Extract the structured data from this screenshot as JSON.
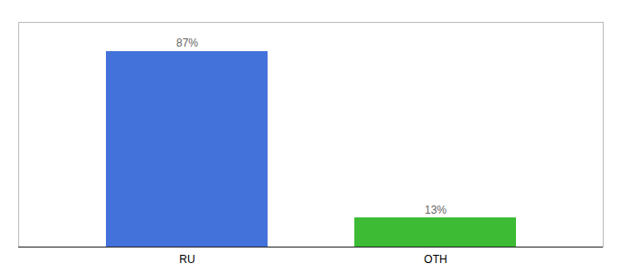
{
  "chart_data": {
    "type": "bar",
    "categories": [
      "RU",
      "OTH"
    ],
    "values": [
      87,
      13
    ],
    "value_labels": [
      "87%",
      "13%"
    ],
    "colors": [
      "#4472db",
      "#3dbb35"
    ],
    "ylim": [
      0,
      100
    ],
    "data_labels": true,
    "tick_labels": "x",
    "grid": false
  }
}
